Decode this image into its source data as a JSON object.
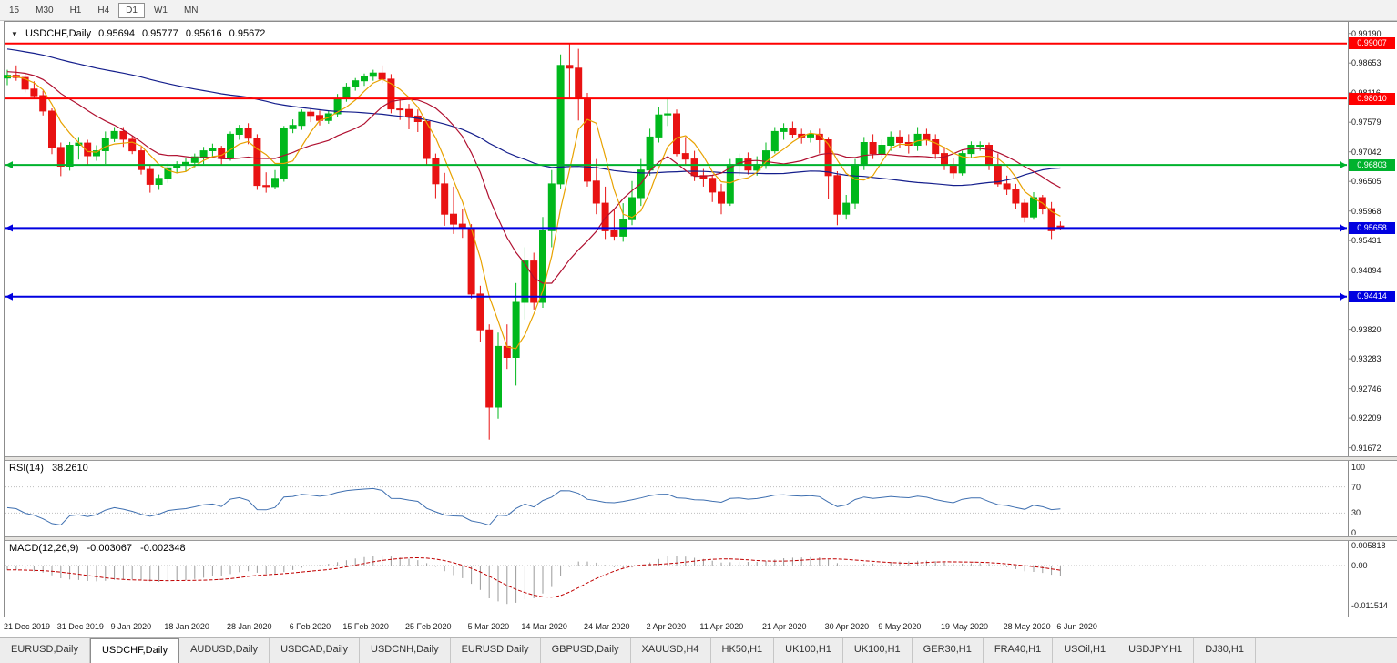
{
  "toolbar": {
    "timeframes": [
      "15",
      "M30",
      "H1",
      "H4",
      "D1",
      "W1",
      "MN"
    ],
    "active_timeframe": "D1"
  },
  "chart_header": {
    "dropdown_icon": "▼",
    "symbol": "USDCHF,Daily",
    "open": "0.95694",
    "high": "0.95777",
    "low": "0.95616",
    "close": "0.95672"
  },
  "rsi_panel": {
    "label": "RSI(14)",
    "value": "38.2610",
    "axis": [
      "100",
      "70",
      "30",
      "0"
    ],
    "levels": [
      70,
      30
    ]
  },
  "macd_panel": {
    "label": "MACD(12,26,9)",
    "main_value": "-0.003067",
    "signal_value": "-0.002348",
    "axis": [
      "0.005818",
      "0.00",
      "-0.011514"
    ]
  },
  "tabs": {
    "active_index": 1,
    "items": [
      "EURUSD,Daily",
      "USDCHF,Daily",
      "AUDUSD,Daily",
      "USDCAD,Daily",
      "USDCNH,Daily",
      "EURUSD,Daily",
      "GBPUSD,Daily",
      "XAUUSD,H4",
      "HK50,H1",
      "UK100,H1",
      "UK100,H1",
      "GER30,H1",
      "FRA40,H1",
      "USOil,H1",
      "USDJPY,H1",
      "DJ30,H1"
    ]
  },
  "chart_data": {
    "type": "candlestick",
    "title": "USDCHF,Daily",
    "price_axis": {
      "top_price": 0.993,
      "bottom_price": 0.916,
      "ticks": [
        "0.99190",
        "0.98653",
        "0.98116",
        "0.97579",
        "0.97042",
        "0.96505",
        "0.95968",
        "0.95431",
        "0.94894",
        "0.94357",
        "0.93820",
        "0.93283",
        "0.92746",
        "0.92209",
        "0.91672"
      ]
    },
    "hlines": [
      {
        "price": 0.99007,
        "label": "0.99007",
        "color": "#FF0000",
        "markers": false
      },
      {
        "price": 0.9801,
        "label": "0.98010",
        "color": "#FF0000",
        "markers": false
      },
      {
        "price": 0.96803,
        "label": "0.96803",
        "color": "#00B22D",
        "markers": true
      },
      {
        "price": 0.95658,
        "label": "0.95658",
        "color": "#0000E0",
        "markers": true
      },
      {
        "price": 0.94414,
        "label": "0.94414",
        "color": "#0000E0",
        "markers": true
      }
    ],
    "colors": {
      "up": "#00B81C",
      "down": "#E81212",
      "ma_fast": "#E8A200",
      "ma_mid": "#B01030",
      "ma_slow": "#141E8C",
      "rsi": "#3E6FB0",
      "macd_hist": "#9B9B9B",
      "macd_signal": "#C00000",
      "level_dotted": "#BEBEBE"
    },
    "moving_averages": [
      {
        "period": 5,
        "color_key": "ma_fast"
      },
      {
        "period": 13,
        "color_key": "ma_mid"
      },
      {
        "period": 60,
        "color_key": "ma_slow"
      }
    ],
    "indicators": {
      "rsi_period": 14,
      "macd": [
        12,
        26,
        9
      ]
    },
    "x_labels": [
      {
        "text": "21 Dec 2019",
        "i": 0
      },
      {
        "text": "31 Dec 2019",
        "i": 6
      },
      {
        "text": "9 Jan 2020",
        "i": 12
      },
      {
        "text": "18 Jan 2020",
        "i": 18
      },
      {
        "text": "28 Jan 2020",
        "i": 25
      },
      {
        "text": "6 Feb 2020",
        "i": 32
      },
      {
        "text": "15 Feb 2020",
        "i": 38
      },
      {
        "text": "25 Feb 2020",
        "i": 45
      },
      {
        "text": "5 Mar 2020",
        "i": 52
      },
      {
        "text": "14 Mar 2020",
        "i": 58
      },
      {
        "text": "24 Mar 2020",
        "i": 65
      },
      {
        "text": "2 Apr 2020",
        "i": 72
      },
      {
        "text": "11 Apr 2020",
        "i": 78
      },
      {
        "text": "21 Apr 2020",
        "i": 85
      },
      {
        "text": "30 Apr 2020",
        "i": 92
      },
      {
        "text": "9 May 2020",
        "i": 98
      },
      {
        "text": "19 May 2020",
        "i": 105
      },
      {
        "text": "28 May 2020",
        "i": 112
      },
      {
        "text": "6 Jun 2020",
        "i": 118
      }
    ],
    "history_closes": [
      0.9985,
      0.9978,
      0.9982,
      0.997,
      0.9962,
      0.9955,
      0.9948,
      0.9952,
      0.994,
      0.9932,
      0.9925,
      0.9918,
      0.9922,
      0.991,
      0.9905,
      0.9898,
      0.9902,
      0.9895,
      0.9888,
      0.9892,
      0.9885,
      0.9878,
      0.9882,
      0.9875,
      0.9868,
      0.9872,
      0.9865,
      0.9858,
      0.9862,
      0.9855,
      0.9905,
      0.991,
      0.99,
      0.9895,
      0.989,
      0.9885,
      0.988,
      0.9875,
      0.987,
      0.9865,
      0.9915,
      0.992,
      0.991,
      0.99,
      0.989,
      0.988,
      0.987,
      0.986,
      0.985,
      0.9845,
      0.986,
      0.987,
      0.9865,
      0.9855,
      0.985,
      0.9845,
      0.984,
      0.9838,
      0.9842,
      0.984
    ],
    "candles": [
      [
        0.9838,
        0.9853,
        0.9825,
        0.9843
      ],
      [
        0.9843,
        0.9861,
        0.9833,
        0.9839
      ],
      [
        0.9839,
        0.9848,
        0.9812,
        0.9818
      ],
      [
        0.9818,
        0.9832,
        0.98,
        0.9806
      ],
      [
        0.9806,
        0.9815,
        0.977,
        0.9778
      ],
      [
        0.9778,
        0.9783,
        0.97,
        0.9712
      ],
      [
        0.9712,
        0.9721,
        0.966,
        0.9678
      ],
      [
        0.9678,
        0.9722,
        0.967,
        0.9716
      ],
      [
        0.9716,
        0.9731,
        0.969,
        0.972
      ],
      [
        0.972,
        0.9726,
        0.968,
        0.9697
      ],
      [
        0.9697,
        0.9716,
        0.9688,
        0.9706
      ],
      [
        0.9706,
        0.9741,
        0.9682,
        0.9728
      ],
      [
        0.9728,
        0.9749,
        0.9722,
        0.9741
      ],
      [
        0.9741,
        0.9749,
        0.9713,
        0.9727
      ],
      [
        0.9727,
        0.9733,
        0.97,
        0.9706
      ],
      [
        0.9706,
        0.9713,
        0.9663,
        0.9672
      ],
      [
        0.9672,
        0.9681,
        0.963,
        0.9645
      ],
      [
        0.9645,
        0.9663,
        0.9635,
        0.9656
      ],
      [
        0.9656,
        0.9683,
        0.9648,
        0.9675
      ],
      [
        0.9675,
        0.9687,
        0.9665,
        0.9681
      ],
      [
        0.9681,
        0.9693,
        0.9668,
        0.9685
      ],
      [
        0.9685,
        0.9701,
        0.9676,
        0.9695
      ],
      [
        0.9695,
        0.9713,
        0.9682,
        0.9706
      ],
      [
        0.9706,
        0.9719,
        0.9695,
        0.971
      ],
      [
        0.971,
        0.9715,
        0.968,
        0.9692
      ],
      [
        0.9692,
        0.9741,
        0.9688,
        0.9736
      ],
      [
        0.9736,
        0.9753,
        0.9726,
        0.9747
      ],
      [
        0.9747,
        0.9756,
        0.9718,
        0.9729
      ],
      [
        0.9729,
        0.9736,
        0.9635,
        0.9643
      ],
      [
        0.9643,
        0.9667,
        0.963,
        0.9641
      ],
      [
        0.9641,
        0.9671,
        0.9636,
        0.9656
      ],
      [
        0.9656,
        0.9751,
        0.965,
        0.9746
      ],
      [
        0.9746,
        0.9763,
        0.9738,
        0.9752
      ],
      [
        0.9752,
        0.9781,
        0.9744,
        0.9776
      ],
      [
        0.9776,
        0.9783,
        0.9758,
        0.977
      ],
      [
        0.977,
        0.9779,
        0.9752,
        0.9761
      ],
      [
        0.9761,
        0.9779,
        0.9755,
        0.9773
      ],
      [
        0.9773,
        0.9809,
        0.9768,
        0.9801
      ],
      [
        0.9801,
        0.9829,
        0.9795,
        0.9822
      ],
      [
        0.9822,
        0.9838,
        0.9815,
        0.9833
      ],
      [
        0.9833,
        0.9846,
        0.9824,
        0.9841
      ],
      [
        0.9841,
        0.9853,
        0.9833,
        0.9847
      ],
      [
        0.9847,
        0.9861,
        0.9829,
        0.9836
      ],
      [
        0.9836,
        0.9845,
        0.9774,
        0.9782
      ],
      [
        0.9782,
        0.9801,
        0.9762,
        0.9781
      ],
      [
        0.9781,
        0.9791,
        0.9745,
        0.9769
      ],
      [
        0.9769,
        0.9781,
        0.974,
        0.9759
      ],
      [
        0.9759,
        0.9763,
        0.968,
        0.9692
      ],
      [
        0.9692,
        0.9701,
        0.962,
        0.9646
      ],
      [
        0.9646,
        0.9666,
        0.957,
        0.9591
      ],
      [
        0.9591,
        0.9641,
        0.9555,
        0.9573
      ],
      [
        0.9573,
        0.9601,
        0.9548,
        0.9566
      ],
      [
        0.9566,
        0.9573,
        0.9438,
        0.9446
      ],
      [
        0.9446,
        0.9461,
        0.936,
        0.9381
      ],
      [
        0.9381,
        0.9391,
        0.9182,
        0.9241
      ],
      [
        0.9241,
        0.9376,
        0.922,
        0.9351
      ],
      [
        0.9351,
        0.9391,
        0.931,
        0.9331
      ],
      [
        0.9331,
        0.9466,
        0.928,
        0.9431
      ],
      [
        0.9431,
        0.9531,
        0.94,
        0.9506
      ],
      [
        0.9506,
        0.9521,
        0.9418,
        0.9431
      ],
      [
        0.9431,
        0.9586,
        0.9421,
        0.9561
      ],
      [
        0.9561,
        0.9671,
        0.9531,
        0.9646
      ],
      [
        0.9646,
        0.9881,
        0.9636,
        0.9861
      ],
      [
        0.9861,
        0.9901,
        0.9801,
        0.9856
      ],
      [
        0.9856,
        0.9891,
        0.9761,
        0.9801
      ],
      [
        0.9801,
        0.9811,
        0.9641,
        0.9651
      ],
      [
        0.9651,
        0.9691,
        0.9591,
        0.9611
      ],
      [
        0.9611,
        0.9641,
        0.9546,
        0.9561
      ],
      [
        0.9561,
        0.9601,
        0.9543,
        0.9551
      ],
      [
        0.9551,
        0.9611,
        0.9541,
        0.9581
      ],
      [
        0.9581,
        0.9651,
        0.9571,
        0.9621
      ],
      [
        0.9621,
        0.9691,
        0.9606,
        0.9671
      ],
      [
        0.9671,
        0.9746,
        0.9661,
        0.9731
      ],
      [
        0.9731,
        0.9786,
        0.9721,
        0.9771
      ],
      [
        0.9771,
        0.9801,
        0.9751,
        0.9773
      ],
      [
        0.9773,
        0.9781,
        0.9696,
        0.9701
      ],
      [
        0.9701,
        0.9731,
        0.9681,
        0.9691
      ],
      [
        0.9691,
        0.9706,
        0.9651,
        0.9661
      ],
      [
        0.9661,
        0.9673,
        0.9641,
        0.9656
      ],
      [
        0.9656,
        0.9661,
        0.9613,
        0.9631
      ],
      [
        0.9631,
        0.9646,
        0.9591,
        0.9611
      ],
      [
        0.9611,
        0.9691,
        0.9606,
        0.9681
      ],
      [
        0.9681,
        0.9701,
        0.9661,
        0.9691
      ],
      [
        0.9691,
        0.9703,
        0.9663,
        0.9671
      ],
      [
        0.9671,
        0.9696,
        0.9661,
        0.9681
      ],
      [
        0.9681,
        0.9721,
        0.9673,
        0.9706
      ],
      [
        0.9706,
        0.9749,
        0.9701,
        0.9741
      ],
      [
        0.9741,
        0.9756,
        0.9726,
        0.9746
      ],
      [
        0.9746,
        0.9759,
        0.9729,
        0.9736
      ],
      [
        0.9736,
        0.9746,
        0.9719,
        0.9731
      ],
      [
        0.9731,
        0.9743,
        0.9721,
        0.9736
      ],
      [
        0.9736,
        0.9746,
        0.9701,
        0.9726
      ],
      [
        0.9726,
        0.9731,
        0.9619,
        0.9661
      ],
      [
        0.9661,
        0.9669,
        0.9571,
        0.9591
      ],
      [
        0.9591,
        0.9626,
        0.9581,
        0.9611
      ],
      [
        0.9611,
        0.9691,
        0.9601,
        0.9681
      ],
      [
        0.9681,
        0.9731,
        0.9671,
        0.9721
      ],
      [
        0.9721,
        0.9736,
        0.9691,
        0.9701
      ],
      [
        0.9701,
        0.9726,
        0.9693,
        0.9716
      ],
      [
        0.9716,
        0.9741,
        0.9706,
        0.9731
      ],
      [
        0.9731,
        0.9743,
        0.9711,
        0.9721
      ],
      [
        0.9721,
        0.9736,
        0.9701,
        0.9716
      ],
      [
        0.9716,
        0.9749,
        0.9706,
        0.9736
      ],
      [
        0.9736,
        0.9746,
        0.9716,
        0.9726
      ],
      [
        0.9726,
        0.9736,
        0.9691,
        0.9701
      ],
      [
        0.9701,
        0.9713,
        0.9671,
        0.9681
      ],
      [
        0.9681,
        0.9693,
        0.9656,
        0.9666
      ],
      [
        0.9666,
        0.9706,
        0.9661,
        0.9701
      ],
      [
        0.9701,
        0.9723,
        0.9693,
        0.9716
      ],
      [
        0.9716,
        0.9723,
        0.9706,
        0.9716
      ],
      [
        0.9716,
        0.9721,
        0.9671,
        0.9681
      ],
      [
        0.9681,
        0.9701,
        0.9641,
        0.9646
      ],
      [
        0.9646,
        0.9661,
        0.9626,
        0.9636
      ],
      [
        0.9636,
        0.9646,
        0.9601,
        0.9611
      ],
      [
        0.9611,
        0.9619,
        0.9576,
        0.9586
      ],
      [
        0.9586,
        0.9631,
        0.9581,
        0.9621
      ],
      [
        0.9621,
        0.9626,
        0.9591,
        0.9601
      ],
      [
        0.9601,
        0.9613,
        0.9546,
        0.9561
      ],
      [
        0.95694,
        0.95777,
        0.95616,
        0.95672
      ]
    ]
  }
}
